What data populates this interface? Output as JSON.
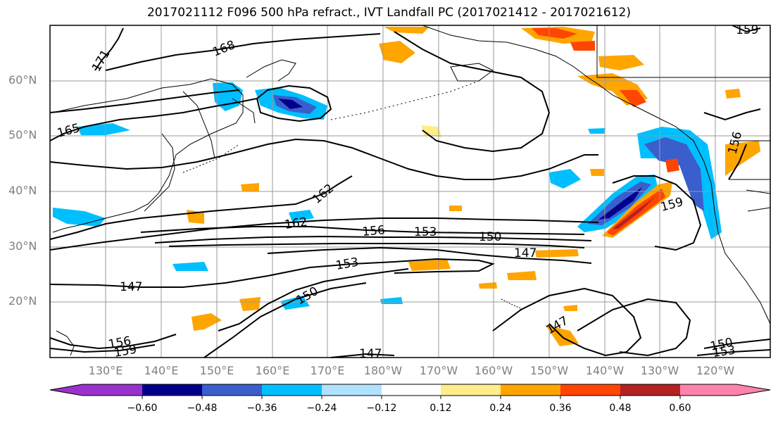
{
  "title": "2017021112 F096 500 hPa refract., IVT Landfall PC (2017021412 - 2017021612)",
  "lat_labels": [
    "60°N",
    "50°N",
    "40°N",
    "30°N",
    "20°N"
  ],
  "lon_labels": [
    "130°E",
    "140°E",
    "150°E",
    "160°E",
    "170°E",
    "180°W",
    "170°W",
    "160°W",
    "150°W",
    "140°W",
    "130°W",
    "120°W"
  ],
  "contour_labels": [
    "168",
    "171",
    "165",
    "162",
    "162",
    "156",
    "153",
    "150",
    "147",
    "153",
    "147",
    "150",
    "147",
    "159",
    "156",
    "159",
    "147",
    "150",
    "153",
    "156",
    "159"
  ],
  "colorbar": {
    "ticks": [
      "−0.60",
      "−0.48",
      "−0.36",
      "−0.24",
      "−0.12",
      "0.12",
      "0.24",
      "0.36",
      "0.48",
      "0.60"
    ],
    "colors": [
      "#9932CC",
      "#00008B",
      "#3A5FCD",
      "#00BFFF",
      "#B0E2FF",
      "#FFFFFF",
      "#FFEC8B",
      "#FFA500",
      "#FF4500",
      "#B22222",
      "#FF82AB"
    ]
  },
  "colors": {
    "contour": "#000000",
    "coast": "#000000",
    "grid": "#9a9a9a",
    "axis_label": "#808080"
  }
}
